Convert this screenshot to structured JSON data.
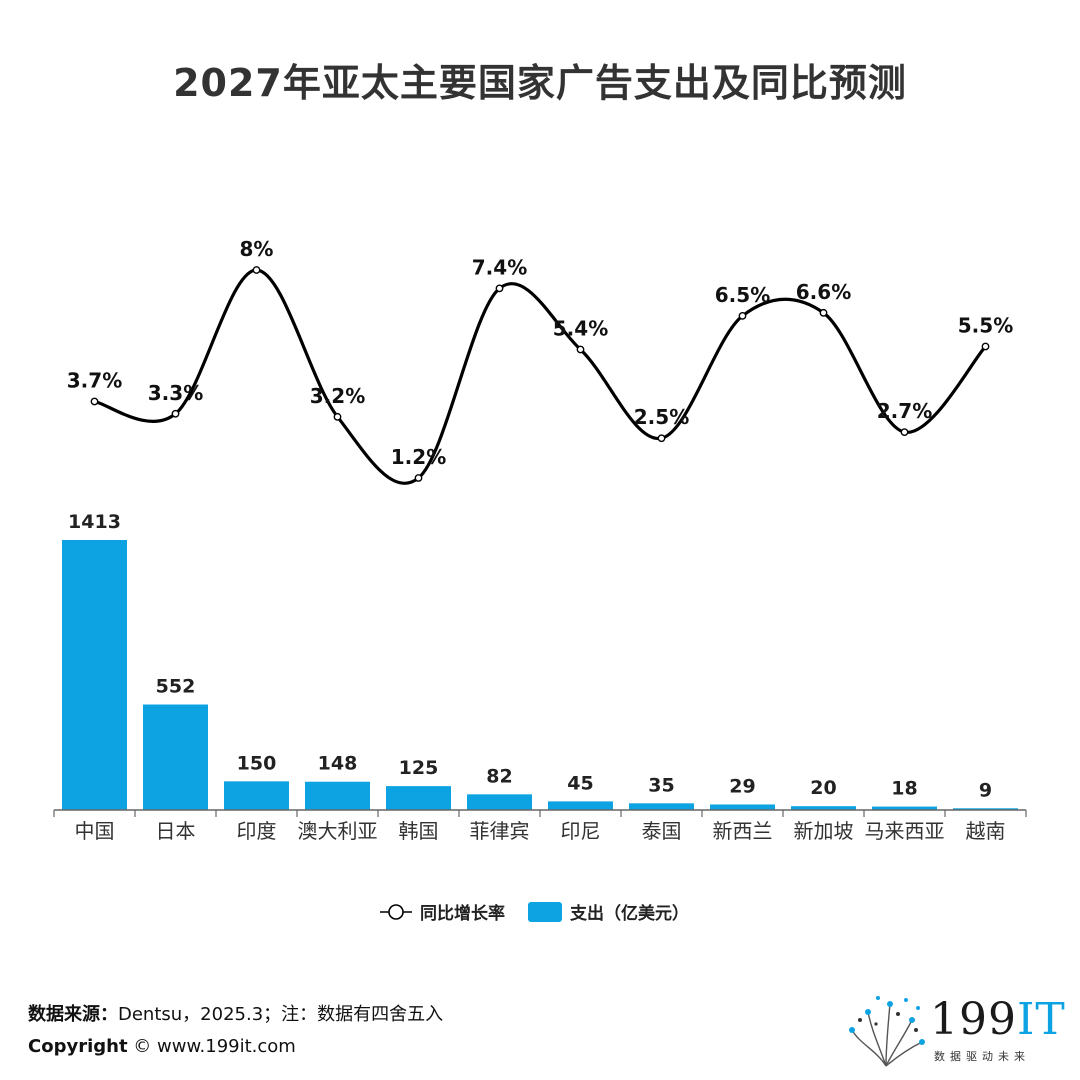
{
  "chart_data": {
    "type": "bar+line",
    "title": "2027年亚太主要国家广告支出及同比预测",
    "categories": [
      "中国",
      "日本",
      "印度",
      "澳大利亚",
      "韩国",
      "菲律宾",
      "印尼",
      "泰国",
      "新西兰",
      "新加坡",
      "马来西亚",
      "越南"
    ],
    "series": [
      {
        "name": "支出（亿美元）",
        "type": "bar",
        "values": [
          1413,
          552,
          150,
          148,
          125,
          82,
          45,
          35,
          29,
          20,
          18,
          9
        ],
        "labels": [
          "1413",
          "552",
          "150",
          "148",
          "125",
          "82",
          "45",
          "35",
          "29",
          "20",
          "18",
          "9"
        ],
        "color": "#0da3e2"
      },
      {
        "name": "同比增长率",
        "type": "line",
        "values": [
          3.7,
          3.3,
          8.0,
          3.2,
          1.2,
          7.4,
          5.4,
          2.5,
          6.5,
          6.6,
          2.7,
          5.5
        ],
        "labels": [
          "3.7%",
          "3.3%",
          "8%",
          "3.2%",
          "1.2%",
          "7.4%",
          "5.4%",
          "2.5%",
          "6.5%",
          "6.6%",
          "2.7%",
          "5.5%"
        ],
        "color": "#000000",
        "smooth": true
      }
    ],
    "legend": {
      "position": "bottom",
      "line_label": "同比增长率",
      "bar_label": "支出（亿美元）"
    },
    "grid": false
  },
  "footer": {
    "source_label": "数据来源：",
    "source_text": "Dentsu，2025.3；注：数据有四舍五入",
    "copyright_label": "Copyright",
    "copyright_text": "© www.199it.com"
  },
  "logo": {
    "name_digits": "199",
    "name_letters": "IT",
    "tagline": "数据驱动未来",
    "accent_color": "#0da3e2"
  }
}
